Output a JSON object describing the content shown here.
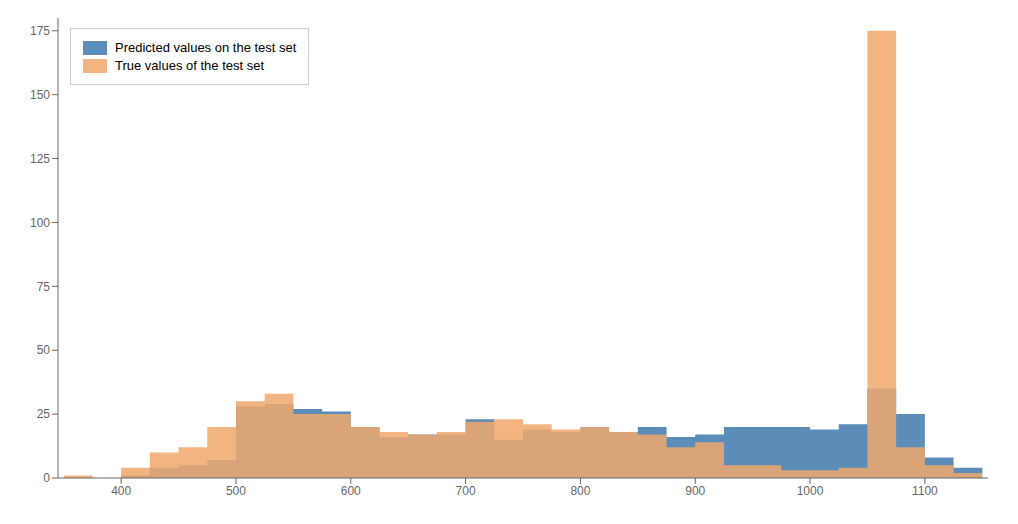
{
  "chart_data": {
    "type": "histogram",
    "title": "",
    "bins": [
      350,
      375,
      400,
      425,
      450,
      475,
      500,
      525,
      550,
      575,
      600,
      625,
      650,
      675,
      700,
      725,
      750,
      775,
      800,
      825,
      850,
      875,
      900,
      925,
      950,
      975,
      1000,
      1025,
      1050,
      1075,
      1100,
      1125,
      1150
    ],
    "series": [
      {
        "name": "Predicted values on the test set",
        "color": "#5B8DB8",
        "values": [
          0,
          0,
          1,
          4,
          5,
          7,
          28,
          29,
          27,
          26,
          20,
          16,
          17,
          17,
          23,
          15,
          19,
          18,
          20,
          18,
          20,
          16,
          17,
          20,
          20,
          20,
          19,
          21,
          35,
          25,
          8,
          4
        ]
      },
      {
        "name": "True values of the test set",
        "color": "#F0A86B",
        "values": [
          1,
          0,
          4,
          10,
          12,
          20,
          30,
          33,
          25,
          25,
          20,
          18,
          17,
          18,
          22,
          23,
          21,
          19,
          20,
          18,
          17,
          12,
          14,
          5,
          5,
          3,
          3,
          4,
          175,
          12,
          5,
          2
        ]
      }
    ],
    "xlim": [
      345,
      1155
    ],
    "ylim": [
      0,
      180
    ],
    "xticks": [
      400,
      500,
      600,
      700,
      800,
      900,
      1000,
      1100
    ],
    "yticks": [
      0,
      25,
      50,
      75,
      100,
      125,
      150,
      175
    ],
    "grid": false,
    "legend": "upper left"
  }
}
